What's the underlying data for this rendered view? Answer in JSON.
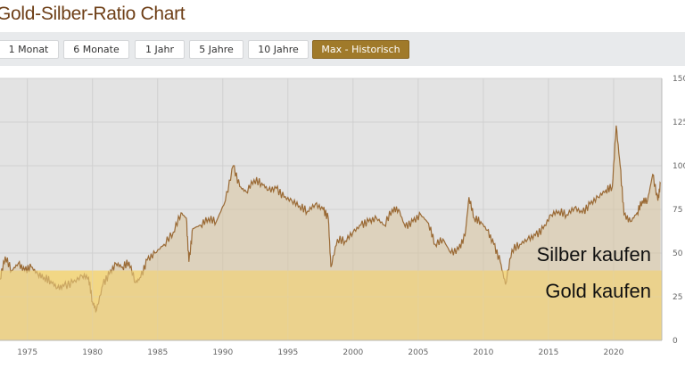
{
  "page": {
    "title": "Gold-Silber-Ratio Chart"
  },
  "buttons": [
    {
      "label": "1 Monat"
    },
    {
      "label": "6 Monate"
    },
    {
      "label": "1 Jahr"
    },
    {
      "label": "5 Jahre"
    },
    {
      "label": "10 Jahre"
    },
    {
      "label": "Max - Historisch",
      "active": true
    }
  ],
  "colors": {
    "title": "#6e3f17",
    "active_button": "#a07a2a",
    "line": "#9a6a35",
    "silver_zone": "#e3e3e3",
    "gold_zone": "#f2d785"
  },
  "chart_data": {
    "type": "line",
    "title": "",
    "xlabel": "",
    "ylabel": "",
    "xlim": [
      1972.9,
      2023.7
    ],
    "ylim": [
      0,
      150
    ],
    "x_ticks": [
      "1975",
      "1980",
      "1985",
      "1990",
      "1995",
      "2000",
      "2005",
      "2010",
      "2015",
      "2020"
    ],
    "y_ticks": [
      "0",
      "25",
      "50",
      "75",
      "100",
      "125",
      "150"
    ],
    "threshold": 40,
    "annotations": [
      "Silber kaufen",
      "Gold kaufen"
    ],
    "series": [
      {
        "name": "Gold-Silber-Ratio",
        "x": [
          1972.9,
          1973.3,
          1973.8,
          1974.3,
          1974.8,
          1975.3,
          1975.8,
          1976.3,
          1976.8,
          1977.3,
          1977.8,
          1978.5,
          1979.2,
          1979.7,
          1980.0,
          1980.3,
          1980.8,
          1981.3,
          1981.8,
          1982.3,
          1982.8,
          1983.3,
          1983.7,
          1984.2,
          1984.8,
          1985.5,
          1986.2,
          1986.8,
          1987.2,
          1987.4,
          1987.7,
          1988.3,
          1988.9,
          1989.5,
          1990.2,
          1990.8,
          1991.3,
          1991.8,
          1992.4,
          1993.0,
          1993.5,
          1994.1,
          1994.7,
          1995.3,
          1995.9,
          1996.5,
          1997.1,
          1997.7,
          1998.1,
          1998.3,
          1998.8,
          1999.4,
          2000.0,
          2000.6,
          2001.2,
          2001.8,
          2002.4,
          2003.0,
          2003.5,
          2004.0,
          2004.6,
          2005.2,
          2005.8,
          2006.3,
          2006.9,
          2007.5,
          2008.1,
          2008.6,
          2008.9,
          2009.3,
          2009.8,
          2010.3,
          2010.8,
          2011.3,
          2011.7,
          2012.2,
          2012.8,
          2013.4,
          2014.0,
          2014.6,
          2015.2,
          2015.8,
          2016.4,
          2017.0,
          2017.6,
          2018.2,
          2018.8,
          2019.4,
          2019.9,
          2020.2,
          2020.5,
          2020.8,
          2021.3,
          2021.8,
          2022.2,
          2022.6,
          2023.0,
          2023.4,
          2023.6
        ],
        "y": [
          35,
          48,
          40,
          44,
          40,
          42,
          38,
          36,
          34,
          30,
          31,
          33,
          37,
          36,
          22,
          17,
          32,
          38,
          44,
          42,
          45,
          33,
          36,
          46,
          50,
          55,
          62,
          73,
          70,
          45,
          64,
          66,
          70,
          68,
          80,
          100,
          88,
          85,
          92,
          90,
          86,
          87,
          82,
          80,
          77,
          74,
          78,
          75,
          70,
          42,
          58,
          57,
          62,
          66,
          68,
          70,
          66,
          75,
          75,
          65,
          68,
          72,
          67,
          55,
          58,
          50,
          52,
          60,
          82,
          70,
          68,
          63,
          55,
          45,
          32,
          52,
          55,
          58,
          60,
          64,
          72,
          74,
          72,
          76,
          73,
          78,
          82,
          86,
          88,
          123,
          100,
          72,
          68,
          73,
          80,
          80,
          95,
          80,
          90
        ]
      }
    ]
  }
}
